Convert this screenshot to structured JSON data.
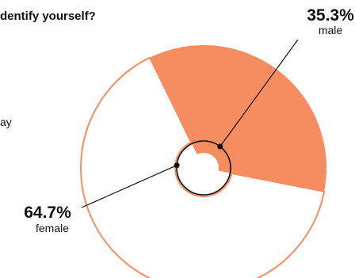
{
  "title_visible": "dentify yourself?",
  "side_text_visible": "ay",
  "chart_data": {
    "type": "pie",
    "title": "",
    "slices": [
      {
        "label": "male",
        "value": 35.3,
        "value_label": "35.3%",
        "color": "#f58d61",
        "style": "filled"
      },
      {
        "label": "female",
        "value": 64.7,
        "value_label": "64.7%",
        "color": "#f58d61",
        "style": "outline"
      }
    ]
  }
}
